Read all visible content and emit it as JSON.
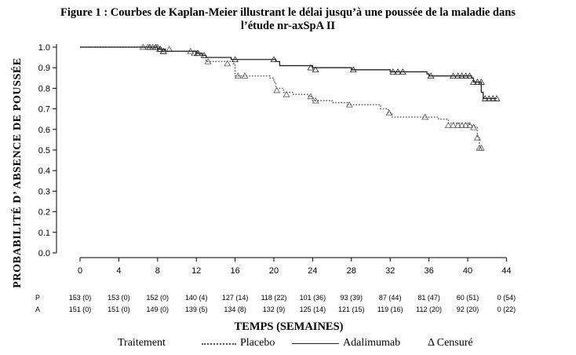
{
  "title_line1": "Figure 1 : Courbes de Kaplan-Meier illustrant le délai jusqu’à une poussée de la maladie dans",
  "title_line2": "l’étude nr-axSpA II",
  "legend": {
    "title": "Traitement",
    "placebo": "Placebo",
    "adalimumab": "Adalimumab",
    "censored": "Δ Censuré"
  },
  "chart_data": {
    "type": "line",
    "subtype": "kaplan-meier step curves",
    "xlabel": "TEMPS (SEMAINES)",
    "ylabel": "PROBABILITÉ D’ ABSENCE DE POUSSÉE",
    "xlim": [
      -1,
      46
    ],
    "ylim": [
      0,
      1.0
    ],
    "x_ticks": [
      "0",
      "4",
      "8",
      "12",
      "16",
      "20",
      "24",
      "28",
      "32",
      "36",
      "40",
      "44"
    ],
    "y_ticks": [
      "0.0",
      "0.1",
      "0.2",
      "0.3",
      "0.4",
      "0.5",
      "0.6",
      "0.7",
      "0.8",
      "0.9",
      "1.0"
    ],
    "series": [
      {
        "name": "Placebo",
        "line_style": "dotted",
        "color": "#555555",
        "steps": [
          [
            0,
            1.0
          ],
          [
            8,
            0.99
          ],
          [
            8.4,
            0.98
          ],
          [
            12,
            0.97
          ],
          [
            12.6,
            0.95
          ],
          [
            13,
            0.93
          ],
          [
            15.8,
            0.92
          ],
          [
            16,
            0.86
          ],
          [
            19.6,
            0.85
          ],
          [
            20,
            0.83
          ],
          [
            20.2,
            0.8
          ],
          [
            21,
            0.78
          ],
          [
            22,
            0.77
          ],
          [
            23.6,
            0.76
          ],
          [
            24,
            0.74
          ],
          [
            26,
            0.73
          ],
          [
            27.6,
            0.72
          ],
          [
            31,
            0.7
          ],
          [
            31.8,
            0.68
          ],
          [
            32.2,
            0.66
          ],
          [
            34,
            0.66
          ],
          [
            37,
            0.65
          ],
          [
            38,
            0.63
          ],
          [
            40.2,
            0.62
          ],
          [
            40.8,
            0.61
          ],
          [
            41,
            0.56
          ],
          [
            41.2,
            0.51
          ],
          [
            41.4,
            0.51
          ]
        ],
        "censored": [
          [
            6.5,
            1.0
          ],
          [
            7,
            1.0
          ],
          [
            7.5,
            1.0
          ],
          [
            8,
            1.0
          ],
          [
            8.2,
            0.99
          ],
          [
            8.6,
            0.98
          ],
          [
            9.2,
            0.99
          ],
          [
            11.4,
            0.98
          ],
          [
            11.8,
            0.97
          ],
          [
            12.2,
            0.97
          ],
          [
            13.2,
            0.93
          ],
          [
            15.2,
            0.92
          ],
          [
            16.3,
            0.86
          ],
          [
            17,
            0.86
          ],
          [
            20.3,
            0.79
          ],
          [
            21.3,
            0.77
          ],
          [
            23.8,
            0.76
          ],
          [
            24.3,
            0.74
          ],
          [
            27.8,
            0.72
          ],
          [
            31.9,
            0.68
          ],
          [
            35.6,
            0.66
          ],
          [
            38,
            0.62
          ],
          [
            38.5,
            0.62
          ],
          [
            39,
            0.62
          ],
          [
            39.4,
            0.62
          ],
          [
            39.8,
            0.62
          ],
          [
            40.2,
            0.62
          ],
          [
            40.6,
            0.61
          ],
          [
            41,
            0.56
          ],
          [
            41.2,
            0.51
          ],
          [
            41.4,
            0.51
          ]
        ]
      },
      {
        "name": "Adalimumab",
        "line_style": "solid",
        "color": "#222222",
        "steps": [
          [
            0,
            1.0
          ],
          [
            8,
            0.99
          ],
          [
            8.8,
            0.98
          ],
          [
            12,
            0.97
          ],
          [
            12.6,
            0.96
          ],
          [
            13,
            0.95
          ],
          [
            15.6,
            0.94
          ],
          [
            20.2,
            0.93
          ],
          [
            20.6,
            0.91
          ],
          [
            24,
            0.9
          ],
          [
            28,
            0.89
          ],
          [
            32,
            0.88
          ],
          [
            35.8,
            0.87
          ],
          [
            36,
            0.86
          ],
          [
            40.4,
            0.85
          ],
          [
            40.6,
            0.83
          ],
          [
            41.4,
            0.78
          ],
          [
            41.6,
            0.75
          ],
          [
            43,
            0.75
          ]
        ],
        "censored": [
          [
            7.2,
            1.0
          ],
          [
            7.8,
            1.0
          ],
          [
            8.3,
            0.99
          ],
          [
            8.6,
            0.98
          ],
          [
            12.1,
            0.97
          ],
          [
            12.8,
            0.96
          ],
          [
            16,
            0.94
          ],
          [
            20,
            0.94
          ],
          [
            23.8,
            0.9
          ],
          [
            24.3,
            0.89
          ],
          [
            28.2,
            0.89
          ],
          [
            32.3,
            0.88
          ],
          [
            32.8,
            0.88
          ],
          [
            33.3,
            0.88
          ],
          [
            36.2,
            0.86
          ],
          [
            38.5,
            0.86
          ],
          [
            39,
            0.86
          ],
          [
            39.4,
            0.86
          ],
          [
            39.8,
            0.86
          ],
          [
            40.2,
            0.86
          ],
          [
            40.6,
            0.83
          ],
          [
            41,
            0.83
          ],
          [
            41.4,
            0.83
          ],
          [
            41.8,
            0.75
          ],
          [
            42.2,
            0.75
          ],
          [
            42.6,
            0.75
          ],
          [
            43,
            0.75
          ]
        ]
      }
    ],
    "risk_table": {
      "rows": [
        {
          "label": "P",
          "values": [
            "153 (0)",
            "153 (0)",
            "152 (0)",
            "140 (4)",
            "127 (14)",
            "118 (22)",
            "101 (36)",
            "93 (39)",
            "87 (44)",
            "81 (47)",
            "60 (51)",
            "0 (54)"
          ]
        },
        {
          "label": "A",
          "values": [
            "151 (0)",
            "151 (0)",
            "149 (0)",
            "139 (5)",
            "134 (8)",
            "132 (9)",
            "125 (14)",
            "121 (15)",
            "119 (16)",
            "112 (20)",
            "92 (20)",
            "0 (22)"
          ]
        }
      ]
    }
  }
}
